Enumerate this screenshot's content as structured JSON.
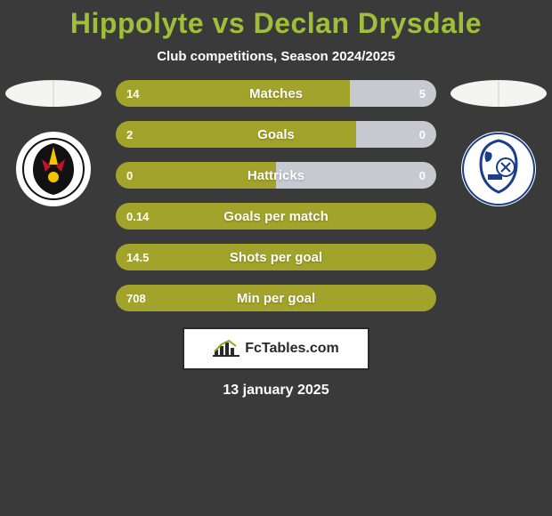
{
  "title_color": "#9fbf3a",
  "background_color": "#3a3a3a",
  "title": "Hippolyte vs Declan Drysdale",
  "subtitle": "Club competitions, Season 2024/2025",
  "date": "13 january 2025",
  "brand": "FcTables.com",
  "left_player": {
    "name": "Hippolyte",
    "club_hint": "AFC Wimbledon"
  },
  "right_player": {
    "name": "Declan Drysdale",
    "club_hint": "Tranmere Rovers"
  },
  "stats": [
    {
      "label": "Matches",
      "left_value": "14",
      "right_value": "5",
      "left_pct": 73,
      "right_pct": 27,
      "left_color": "#a2a32a",
      "right_color": "#c6c9cf"
    },
    {
      "label": "Goals",
      "left_value": "2",
      "right_value": "0",
      "left_pct": 75,
      "right_pct": 25,
      "left_color": "#a2a32a",
      "right_color": "#c6c9cf"
    },
    {
      "label": "Hattricks",
      "left_value": "0",
      "right_value": "0",
      "left_pct": 50,
      "right_pct": 50,
      "left_color": "#a2a32a",
      "right_color": "#c6c9cf"
    },
    {
      "label": "Goals per match",
      "left_value": "0.14",
      "right_value": "",
      "left_pct": 100,
      "right_pct": 0,
      "left_color": "#a2a32a",
      "right_color": "#c6c9cf"
    },
    {
      "label": "Shots per goal",
      "left_value": "14.5",
      "right_value": "",
      "left_pct": 100,
      "right_pct": 0,
      "left_color": "#a2a32a",
      "right_color": "#c6c9cf"
    },
    {
      "label": "Min per goal",
      "left_value": "708",
      "right_value": "",
      "left_pct": 100,
      "right_pct": 0,
      "left_color": "#a2a32a",
      "right_color": "#c6c9cf"
    }
  ],
  "bar": {
    "height": 30,
    "radius": 15,
    "track_width": 360,
    "gap": 16,
    "value_fontsize": 13,
    "label_fontsize": 15
  },
  "crest_left_colors": {
    "bg": "#ffffff",
    "main": "#111111",
    "accent1": "#f3c300",
    "accent2": "#c8102e"
  },
  "crest_right_colors": {
    "bg": "#ffffff",
    "main": "#1a3e8b",
    "accent": "#1a3e8b"
  }
}
